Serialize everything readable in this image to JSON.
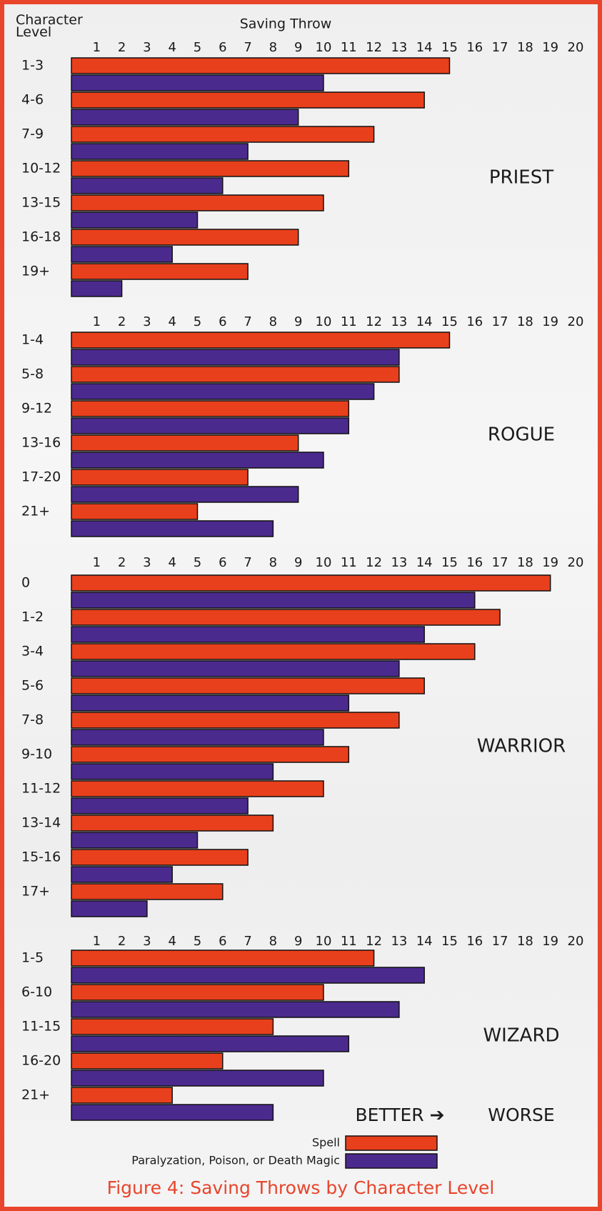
{
  "title": "Figure 4: Saving Throws by Character Level",
  "x_label": "Saving Throw",
  "y_label": "Character Level",
  "better": "BETTER ➔",
  "worse": "WORSE",
  "chart_data": [
    {
      "type": "bar",
      "orientation": "horizontal",
      "title": "PRIEST",
      "categories": [
        "1-3",
        "4-6",
        "7-9",
        "10-12",
        "13-15",
        "16-18",
        "19+"
      ],
      "series": [
        {
          "name": "Spell",
          "color": "#e8401c",
          "values": [
            15,
            14,
            12,
            11,
            10,
            9,
            7
          ]
        },
        {
          "name": "Paralyzation, Poison, or Death Magic",
          "color": "#4b2a8e",
          "values": [
            10,
            9,
            7,
            6,
            5,
            4,
            2
          ]
        }
      ],
      "xlim": [
        0,
        20.5
      ],
      "xticks": [
        1,
        2,
        3,
        4,
        5,
        6,
        7,
        8,
        9,
        10,
        11,
        12,
        13,
        14,
        15,
        16,
        17,
        18,
        19,
        20
      ]
    },
    {
      "type": "bar",
      "orientation": "horizontal",
      "title": "ROGUE",
      "categories": [
        "1-4",
        "5-8",
        "9-12",
        "13-16",
        "17-20",
        "21+"
      ],
      "series": [
        {
          "name": "Spell",
          "color": "#e8401c",
          "values": [
            15,
            13,
            11,
            9,
            7,
            5
          ]
        },
        {
          "name": "Paralyzation, Poison, or Death Magic",
          "color": "#4b2a8e",
          "values": [
            13,
            12,
            11,
            10,
            9,
            8
          ]
        }
      ],
      "xlim": [
        0,
        20.5
      ],
      "xticks": [
        1,
        2,
        3,
        4,
        5,
        6,
        7,
        8,
        9,
        10,
        11,
        12,
        13,
        14,
        15,
        16,
        17,
        18,
        19,
        20
      ]
    },
    {
      "type": "bar",
      "orientation": "horizontal",
      "title": "WARRIOR",
      "categories": [
        "0",
        "1-2",
        "3-4",
        "5-6",
        "7-8",
        "9-10",
        "11-12",
        "13-14",
        "15-16",
        "17+"
      ],
      "series": [
        {
          "name": "Spell",
          "color": "#e8401c",
          "values": [
            19,
            17,
            16,
            14,
            13,
            11,
            10,
            8,
            7,
            6
          ]
        },
        {
          "name": "Paralyzation, Poison, or Death Magic",
          "color": "#4b2a8e",
          "values": [
            16,
            14,
            13,
            11,
            10,
            8,
            7,
            5,
            4,
            3
          ]
        }
      ],
      "xlim": [
        0,
        20.5
      ],
      "xticks": [
        1,
        2,
        3,
        4,
        5,
        6,
        7,
        8,
        9,
        10,
        11,
        12,
        13,
        14,
        15,
        16,
        17,
        18,
        19,
        20
      ]
    },
    {
      "type": "bar",
      "orientation": "horizontal",
      "title": "WIZARD",
      "categories": [
        "1-5",
        "6-10",
        "11-15",
        "16-20",
        "21+"
      ],
      "series": [
        {
          "name": "Spell",
          "color": "#e8401c",
          "values": [
            12,
            10,
            8,
            6,
            4
          ]
        },
        {
          "name": "Paralyzation, Poison, or Death Magic",
          "color": "#4b2a8e",
          "values": [
            14,
            13,
            11,
            10,
            8
          ]
        }
      ],
      "xlim": [
        0,
        20.5
      ],
      "xticks": [
        1,
        2,
        3,
        4,
        5,
        6,
        7,
        8,
        9,
        10,
        11,
        12,
        13,
        14,
        15,
        16,
        17,
        18,
        19,
        20
      ]
    }
  ]
}
